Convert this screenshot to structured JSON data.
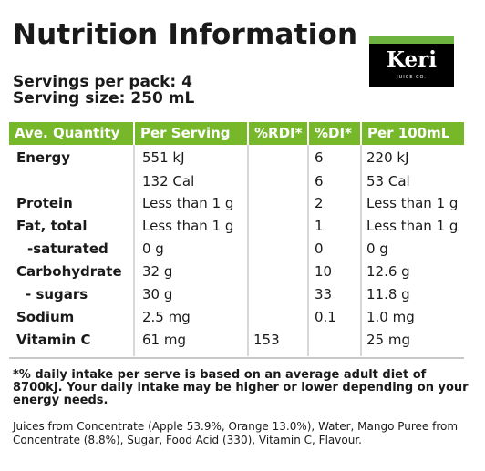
{
  "title": "Nutrition Information",
  "servings_per_pack": "Servings per pack: 4",
  "serving_size": "Serving size: 250 mL",
  "logo": {
    "name": "Keri",
    "sub": "JUICE CO."
  },
  "headers": [
    "Ave. Quantity",
    "Per Serving",
    "%RDI*",
    "%DI*",
    "Per 100mL"
  ],
  "rows": [
    {
      "label": "Energy",
      "serv": "551 kJ",
      "rdi": "",
      "di": "6",
      "per100": "220 kJ"
    },
    {
      "label": "",
      "serv": "132 Cal",
      "rdi": "",
      "di": "6",
      "per100": "53 Cal"
    },
    {
      "label": "Protein",
      "serv": "Less than 1 g",
      "rdi": "",
      "di": "2",
      "per100": "Less than 1 g"
    },
    {
      "label": "Fat, total",
      "serv": "Less than 1 g",
      "rdi": "",
      "di": "1",
      "per100": "Less than 1 g"
    },
    {
      "label": "-saturated",
      "serv": "0 g",
      "rdi": "",
      "di": "0",
      "per100": "0 g"
    },
    {
      "label": "Carbohydrate",
      "serv": "32 g",
      "rdi": "",
      "di": "10",
      "per100": "12.6 g"
    },
    {
      "label": "- sugars",
      "serv": "30 g",
      "rdi": "",
      "di": "33",
      "per100": "11.8 g"
    },
    {
      "label": "Sodium",
      "serv": "2.5 mg",
      "rdi": "",
      "di": "0.1",
      "per100": "1.0 mg"
    },
    {
      "label": "Vitamin C",
      "serv": "61 mg",
      "rdi": "153",
      "di": "",
      "per100": "25 mg"
    }
  ],
  "footnote": "*% daily intake per serve is based on an average adult diet of 8700kJ. Your daily intake may be higher or lower depending on your energy needs.",
  "ingredients": "Juices from Concentrate (Apple 53.9%, Orange 13.0%), Water, Mango Puree from Concentrate (8.8%), Sugar, Food Acid (330), Vitamin C, Flavour."
}
